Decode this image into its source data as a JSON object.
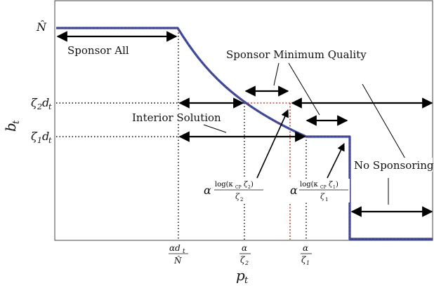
{
  "axes": {
    "y_label_main": "b",
    "y_label_sub": "t",
    "x_label_main": "p",
    "x_label_sub": "t"
  },
  "y_ticks": {
    "n_hat": "N̂",
    "zeta2_a": "ζ",
    "zeta2_b": "2",
    "zeta2_c": "d",
    "zeta2_d": "t",
    "zeta1_a": "ζ",
    "zeta1_b": "1",
    "zeta1_c": "d",
    "zeta1_d": "t"
  },
  "x_ticks": {
    "t1_num_a": "αd",
    "t1_num_b": "t",
    "t1_den": "N̂",
    "t2_num": "α",
    "t2_den_a": "ζ",
    "t2_den_b": "2",
    "t3_num": "α",
    "t3_den_a": "ζ",
    "t3_den_b": "1"
  },
  "annotations": {
    "sponsor_all": "Sponsor All",
    "sponsor_min_quality": "Sponsor Minimum Quality",
    "interior_solution": "Interior Solution",
    "no_sponsoring": "No Sponsoring"
  },
  "formulas": {
    "f1_alpha": "α",
    "f1_num": "log(κ",
    "f1_num_sub": "CP",
    "f1_num_rest": "ζ",
    "f1_num_rest_sub": "2",
    "f1_num_close": ")",
    "f1_den_a": "ζ",
    "f1_den_b": "2",
    "f2_alpha": "α",
    "f2_num": "log(κ",
    "f2_num_sub": "CP",
    "f2_num_rest": "ζ",
    "f2_num_rest_sub": "1",
    "f2_num_close": ")",
    "f2_den_a": "ζ",
    "f2_den_b": "1"
  },
  "colors": {
    "curve_blue": "#3346a8",
    "dotted_red": "#e0432a",
    "axis": "#333333",
    "arrow": "#000000"
  }
}
